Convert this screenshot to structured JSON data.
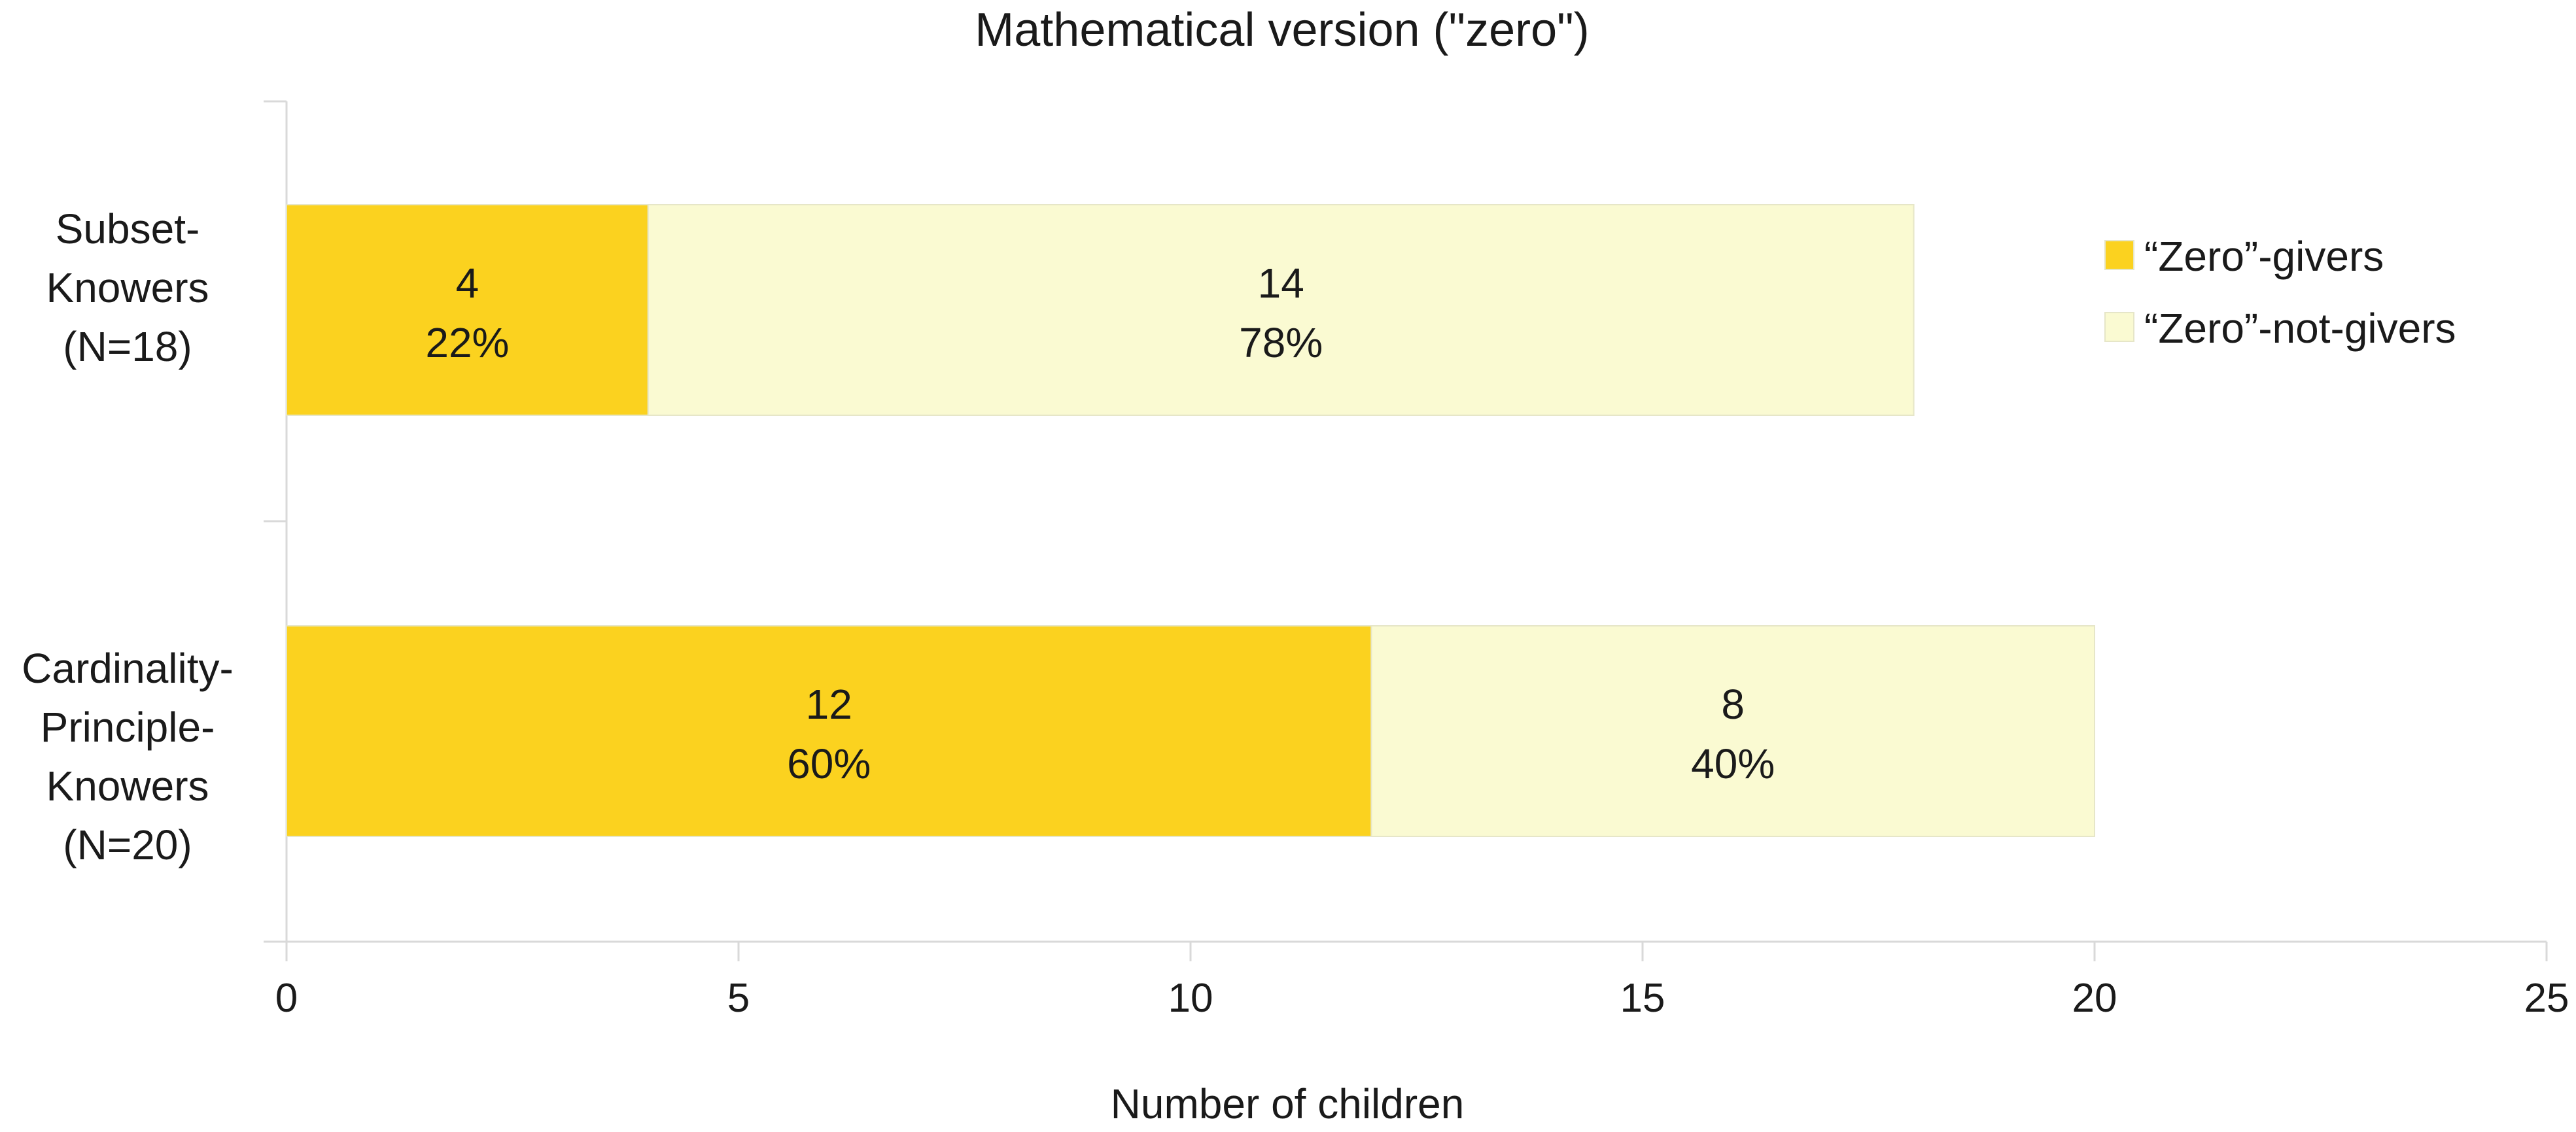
{
  "chart_data": {
    "type": "bar",
    "orientation": "horizontal",
    "stacked": true,
    "title": "Mathematical version (\"zero\")",
    "xlabel": "Number of children",
    "ylabel": "",
    "xlim": [
      0,
      25
    ],
    "xticks": [
      "0",
      "5",
      "10",
      "15",
      "20",
      "25"
    ],
    "grid": false,
    "legend_position": "right",
    "categories": [
      {
        "lines": [
          "Subset-",
          "Knowers",
          "(N=18)"
        ]
      },
      {
        "lines": [
          "Cardinality-",
          "Principle-",
          "Knowers",
          "(N=20)"
        ]
      }
    ],
    "series": [
      {
        "name": "“Zero”-givers",
        "color": "#fbd21f",
        "values": [
          4,
          12
        ],
        "percent_labels": [
          "22%",
          "60%"
        ]
      },
      {
        "name": "“Zero”-not-givers",
        "color": "#fafad2",
        "values": [
          14,
          8
        ],
        "percent_labels": [
          "78%",
          "40%"
        ]
      }
    ]
  }
}
